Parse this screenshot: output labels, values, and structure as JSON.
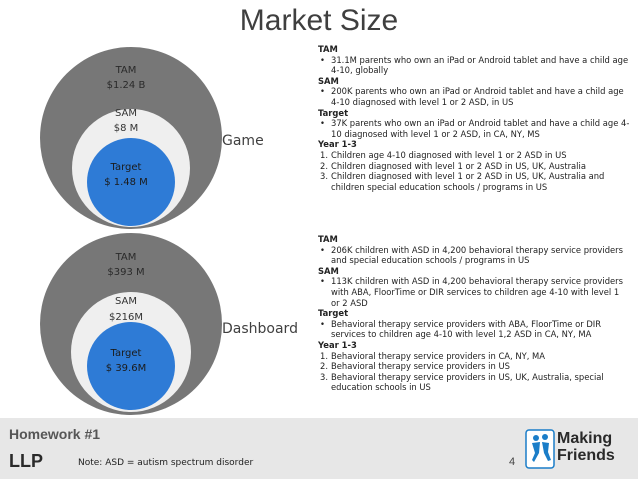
{
  "title": "Market Size",
  "game": {
    "label": "Game",
    "tam_label": "TAM",
    "tam_value": "$1.24 B",
    "sam_label": "SAM",
    "sam_value": "$8 M",
    "target_label": "Target",
    "target_value": "$ 1.48 M"
  },
  "dashboard": {
    "label": "Dashboard",
    "tam_label": "TAM",
    "tam_value": "$393 M",
    "sam_label": "SAM",
    "sam_value": "$216M",
    "target_label": "Target",
    "target_value": "$ 39.6M"
  },
  "game_text": {
    "tam_heading": "TAM",
    "tam_items": [
      "31.1M parents who own an iPad or Android tablet and have a child age 4-10, globally"
    ],
    "sam_heading": "SAM",
    "sam_items": [
      "200K parents who own an iPad or Android tablet and have a child age 4-10 diagnosed with level 1 or 2 ASD, in US"
    ],
    "target_heading": "Target",
    "target_items": [
      "37K parents who own an iPad or Android tablet and have a child age 4-10 diagnosed with level 1 or 2 ASD, in CA, NY, MS"
    ],
    "year_heading": "Year 1-3",
    "year_items": [
      "Children age 4-10 diagnosed with level 1 or 2 ASD in US",
      "Children diagnosed with level 1 or 2 ASD in US, UK, Australia",
      "Children diagnosed with level 1 or 2 ASD in US, UK, Australia and children special education schools / programs in US"
    ]
  },
  "dashboard_text": {
    "tam_heading": "TAM",
    "tam_items": [
      "206K children with ASD in 4,200 behavioral therapy service providers and special education schools / programs in US"
    ],
    "sam_heading": "SAM",
    "sam_items": [
      "113K children with ASD in 4,200 behavioral therapy service providers with ABA, FloorTime or DIR services to children age 4-10 with level 1 or 2 ASD"
    ],
    "target_heading": "Target",
    "target_items": [
      "Behavioral therapy service providers with ABA, FloorTime or DIR services to children age 4-10 with level 1,2 ASD in CA, NY, MA"
    ],
    "year_heading": "Year 1-3",
    "year_items": [
      "Behavioral therapy service providers in CA, NY, MA",
      "Behavioral therapy service providers in US",
      "Behavioral therapy service providers in US, UK, Australia, special education schools in US"
    ]
  },
  "footer": {
    "homework": "Homework #1",
    "llp": "LLP",
    "note": "Note: ASD = autism spectrum disorder",
    "page_number": "4",
    "logo_line1": "Making",
    "logo_line2": "Friends"
  },
  "colors": {
    "tam_circle": "#777777",
    "sam_circle": "#efefef",
    "target_circle": "#2e7bd6",
    "footer_band": "#e7e7e7",
    "logo_blue": "#1a7dc8"
  }
}
